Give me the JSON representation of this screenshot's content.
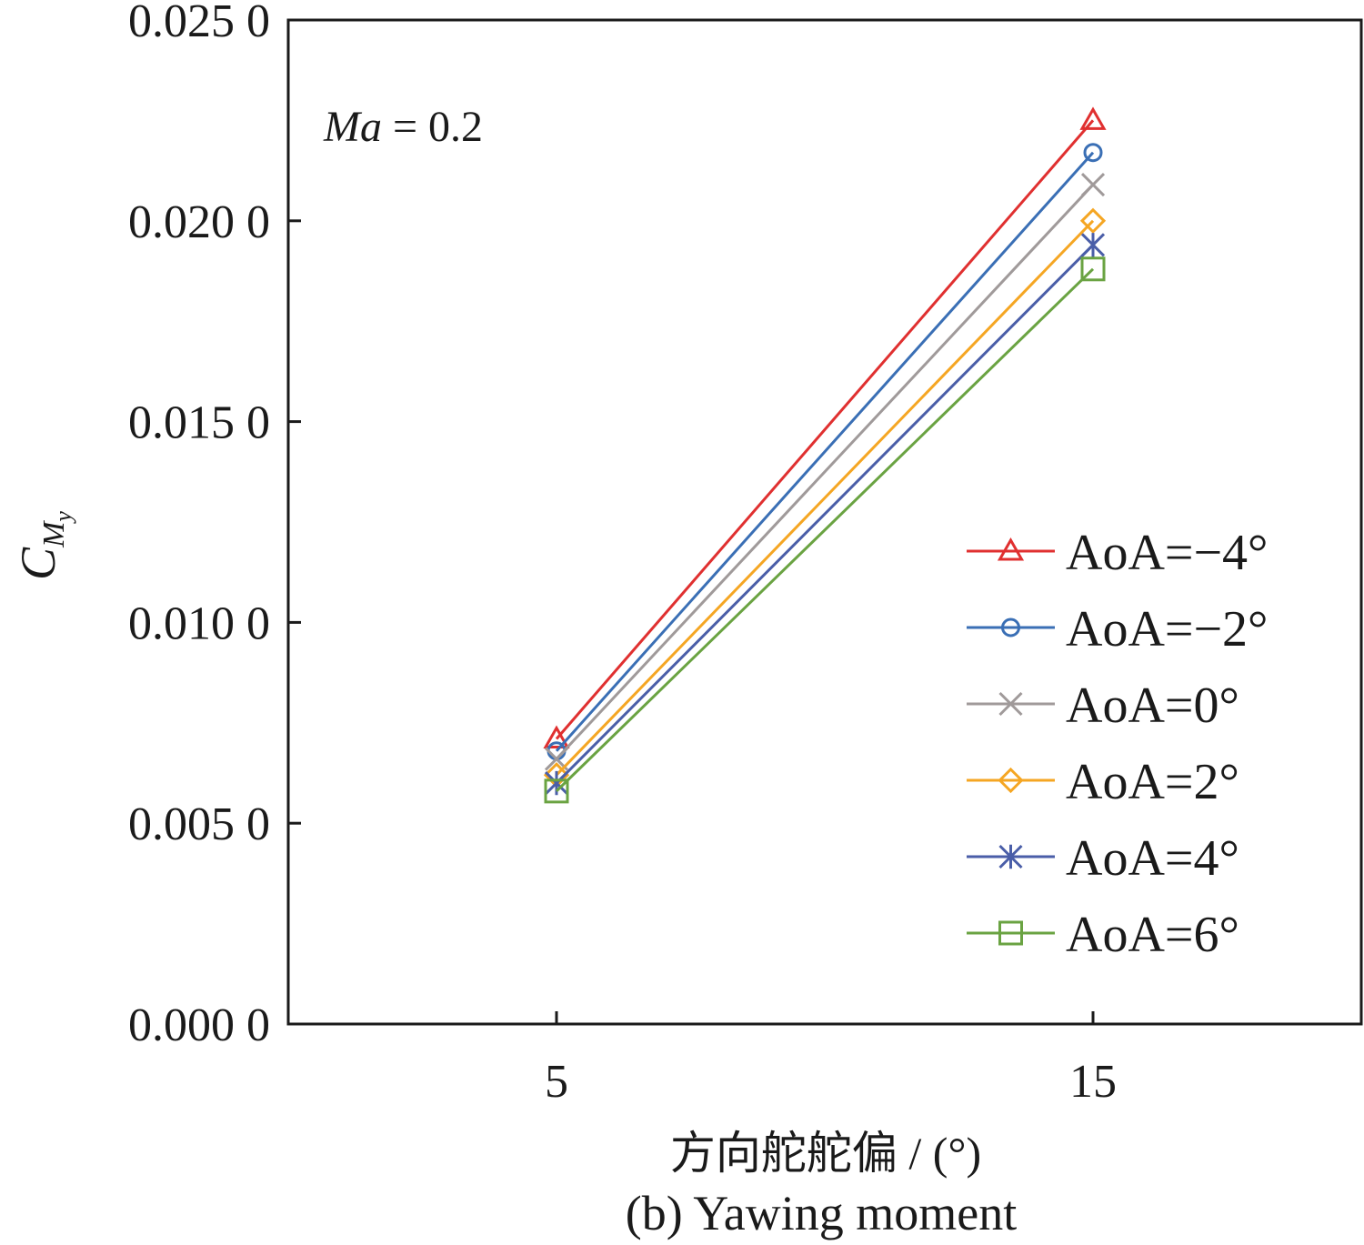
{
  "chart_data": {
    "type": "line",
    "x": [
      5,
      15
    ],
    "xticks": [
      "5",
      "15"
    ],
    "xlim": [
      0,
      20
    ],
    "ylim": [
      0,
      0.025
    ],
    "yticks": [
      "0.000 0",
      "0.005 0",
      "0.010 0",
      "0.015 0",
      "0.020 0",
      "0.025 0"
    ],
    "ytick_values": [
      0,
      0.005,
      0.01,
      0.015,
      0.02,
      0.025
    ],
    "ylabel": {
      "main": "C",
      "sub": "M",
      "subsub": "y"
    },
    "xlabel": "方向舵舵偏 / (°)",
    "caption": "(b) Yawing moment",
    "annotation": {
      "italic": "Ma",
      "rest": " = 0.2"
    },
    "legend_position": "right",
    "grid": false,
    "series": [
      {
        "name": "AoA=−4°",
        "color": "#e03030",
        "marker": "triangle",
        "values": [
          0.0071,
          0.0225
        ]
      },
      {
        "name": "AoA=−2°",
        "color": "#3a6fb5",
        "marker": "circle",
        "values": [
          0.0068,
          0.0217
        ]
      },
      {
        "name": "AoA=0°",
        "color": "#a09a9a",
        "marker": "x",
        "values": [
          0.0066,
          0.0209
        ]
      },
      {
        "name": "AoA=2°",
        "color": "#f5a623",
        "marker": "diamond",
        "values": [
          0.0062,
          0.02
        ]
      },
      {
        "name": "AoA=4°",
        "color": "#4a5ea8",
        "marker": "star",
        "values": [
          0.006,
          0.0194
        ]
      },
      {
        "name": "AoA=6°",
        "color": "#6aa342",
        "marker": "square",
        "values": [
          0.0058,
          0.0188
        ]
      }
    ]
  }
}
